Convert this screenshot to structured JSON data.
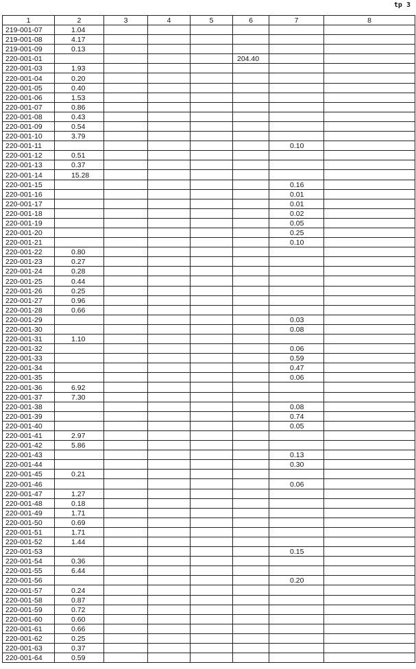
{
  "page_mark": "tp 3",
  "table": {
    "headers": [
      "1",
      "2",
      "3",
      "4",
      "5",
      "6",
      "7",
      "8"
    ],
    "rows": [
      [
        "219-001-07",
        "1.04",
        "",
        "",
        "",
        "",
        "",
        ""
      ],
      [
        "219-001-08",
        "4.17",
        "",
        "",
        "",
        "",
        "",
        ""
      ],
      [
        "219-001-09",
        "0.13",
        "",
        "",
        "",
        "",
        "",
        ""
      ],
      [
        "220-001-01",
        "",
        "",
        "",
        "",
        "204.40",
        "",
        ""
      ],
      [
        "220-001-03",
        "1.93",
        "",
        "",
        "",
        "",
        "",
        ""
      ],
      [
        "220-001-04",
        "0.20",
        "",
        "",
        "",
        "",
        "",
        ""
      ],
      [
        "220-001-05",
        "0.40",
        "",
        "",
        "",
        "",
        "",
        ""
      ],
      [
        "220-001-06",
        "1.53",
        "",
        "",
        "",
        "",
        "",
        ""
      ],
      [
        "220-001-07",
        "0.86",
        "",
        "",
        "",
        "",
        "",
        ""
      ],
      [
        "220-001-08",
        "0.43",
        "",
        "",
        "",
        "",
        "",
        ""
      ],
      [
        "220-001-09",
        "0.54",
        "",
        "",
        "",
        "",
        "",
        ""
      ],
      [
        "220-001-10",
        "3.79",
        "",
        "",
        "",
        "",
        "",
        ""
      ],
      [
        "220-001-11",
        "",
        "",
        "",
        "",
        "",
        "0.10",
        ""
      ],
      [
        "220-001-12",
        "0.51",
        "",
        "",
        "",
        "",
        "",
        ""
      ],
      [
        "220-001-13",
        "0.37",
        "",
        "",
        "",
        "",
        "",
        ""
      ],
      [
        "220-001-14",
        "15.28",
        "",
        "",
        "",
        "",
        "",
        ""
      ],
      [
        "220-001-15",
        "",
        "",
        "",
        "",
        "",
        "0.16",
        ""
      ],
      [
        "220-001-16",
        "",
        "",
        "",
        "",
        "",
        "0.01",
        ""
      ],
      [
        "220-001-17",
        "",
        "",
        "",
        "",
        "",
        "0.01",
        ""
      ],
      [
        "220-001-18",
        "",
        "",
        "",
        "",
        "",
        "0.02",
        ""
      ],
      [
        "220-001-19",
        "",
        "",
        "",
        "",
        "",
        "0.05",
        ""
      ],
      [
        "220-001-20",
        "",
        "",
        "",
        "",
        "",
        "0.25",
        ""
      ],
      [
        "220-001-21",
        "",
        "",
        "",
        "",
        "",
        "0.10",
        ""
      ],
      [
        "220-001-22",
        "0.80",
        "",
        "",
        "",
        "",
        "",
        ""
      ],
      [
        "220-001-23",
        "0.27",
        "",
        "",
        "",
        "",
        "",
        ""
      ],
      [
        "220-001-24",
        "0.28",
        "",
        "",
        "",
        "",
        "",
        ""
      ],
      [
        "220-001-25",
        "0.44",
        "",
        "",
        "",
        "",
        "",
        ""
      ],
      [
        "220-001-26",
        "0.25",
        "",
        "",
        "",
        "",
        "",
        ""
      ],
      [
        "220-001-27",
        "0.96",
        "",
        "",
        "",
        "",
        "",
        ""
      ],
      [
        "220-001-28",
        "0.66",
        "",
        "",
        "",
        "",
        "",
        ""
      ],
      [
        "220-001-29",
        "",
        "",
        "",
        "",
        "",
        "0.03",
        ""
      ],
      [
        "220-001-30",
        "",
        "",
        "",
        "",
        "",
        "0.08",
        ""
      ],
      [
        "220-001-31",
        "1.10",
        "",
        "",
        "",
        "",
        "",
        ""
      ],
      [
        "220-001-32",
        "",
        "",
        "",
        "",
        "",
        "0.06",
        ""
      ],
      [
        "220-001-33",
        "",
        "",
        "",
        "",
        "",
        "0.59",
        ""
      ],
      [
        "220-001-34",
        "",
        "",
        "",
        "",
        "",
        "0.47",
        ""
      ],
      [
        "220-001-35",
        "",
        "",
        "",
        "",
        "",
        "0.06",
        ""
      ],
      [
        "220-001-36",
        "6.92",
        "",
        "",
        "",
        "",
        "",
        ""
      ],
      [
        "220-001-37",
        "7.30",
        "",
        "",
        "",
        "",
        "",
        ""
      ],
      [
        "220-001-38",
        "",
        "",
        "",
        "",
        "",
        "0.08",
        ""
      ],
      [
        "220-001-39",
        "",
        "",
        "",
        "",
        "",
        "0.74",
        ""
      ],
      [
        "220-001-40",
        "",
        "",
        "",
        "",
        "",
        "0.05",
        ""
      ],
      [
        "220-001-41",
        "2.97",
        "",
        "",
        "",
        "",
        "",
        ""
      ],
      [
        "220-001-42",
        "5.86",
        "",
        "",
        "",
        "",
        "",
        ""
      ],
      [
        "220-001-43",
        "",
        "",
        "",
        "",
        "",
        "0.13",
        ""
      ],
      [
        "220-001-44",
        "",
        "",
        "",
        "",
        "",
        "0.30",
        ""
      ],
      [
        "220-001-45",
        "0.21",
        "",
        "",
        "",
        "",
        "",
        ""
      ],
      [
        "220-001-46",
        "",
        "",
        "",
        "",
        "",
        "0.06",
        ""
      ],
      [
        "220-001-47",
        "1.27",
        "",
        "",
        "",
        "",
        "",
        ""
      ],
      [
        "220-001-48",
        "0.18",
        "",
        "",
        "",
        "",
        "",
        ""
      ],
      [
        "220-001-49",
        "1.71",
        "",
        "",
        "",
        "",
        "",
        ""
      ],
      [
        "220-001-50",
        "0.69",
        "",
        "",
        "",
        "",
        "",
        ""
      ],
      [
        "220-001-51",
        "1.71",
        "",
        "",
        "",
        "",
        "",
        ""
      ],
      [
        "220-001-52",
        "1.44",
        "",
        "",
        "",
        "",
        "",
        ""
      ],
      [
        "220-001-53",
        "",
        "",
        "",
        "",
        "",
        "0.15",
        ""
      ],
      [
        "220-001-54",
        "0.36",
        "",
        "",
        "",
        "",
        "",
        ""
      ],
      [
        "220-001-55",
        "6.44",
        "",
        "",
        "",
        "",
        "",
        ""
      ],
      [
        "220-001-56",
        "",
        "",
        "",
        "",
        "",
        "0.20",
        ""
      ],
      [
        "220-001-57",
        "0.24",
        "",
        "",
        "",
        "",
        "",
        ""
      ],
      [
        "220-001-58",
        "0.87",
        "",
        "",
        "",
        "",
        "",
        ""
      ],
      [
        "220-001-59",
        "0.72",
        "",
        "",
        "",
        "",
        "",
        ""
      ],
      [
        "220-001-60",
        "0.60",
        "",
        "",
        "",
        "",
        "",
        ""
      ],
      [
        "220-001-61",
        "0.66",
        "",
        "",
        "",
        "",
        "",
        ""
      ],
      [
        "220-001-62",
        "0.25",
        "",
        "",
        "",
        "",
        "",
        ""
      ],
      [
        "220-001-63",
        "0.37",
        "",
        "",
        "",
        "",
        "",
        ""
      ],
      [
        "220-001-64",
        "0.59",
        "",
        "",
        "",
        "",
        "",
        ""
      ]
    ]
  }
}
